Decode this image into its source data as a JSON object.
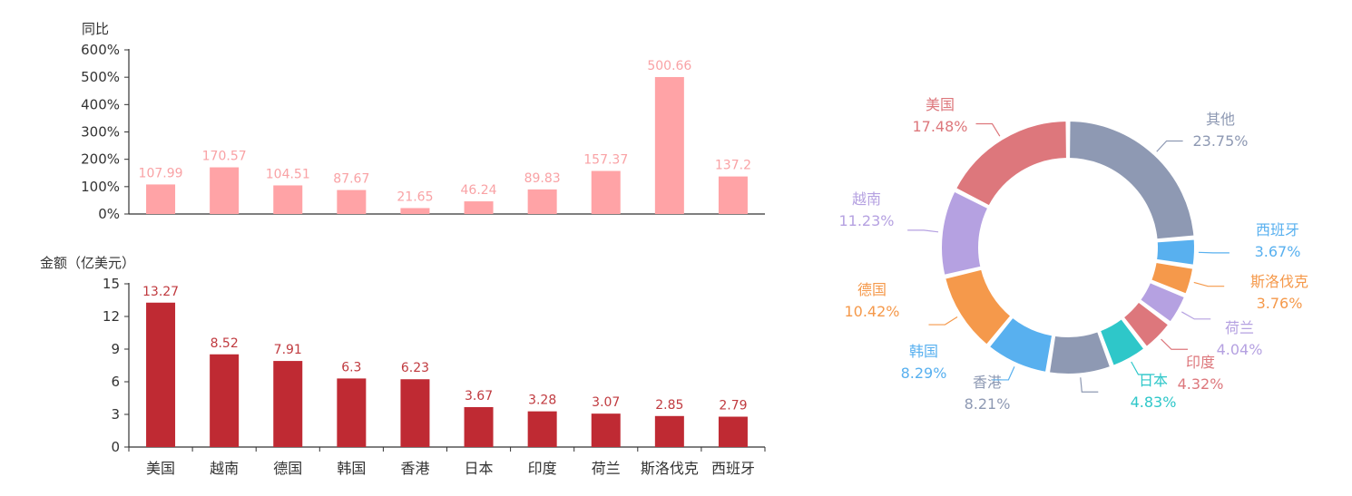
{
  "chart_data": [
    {
      "type": "bar",
      "ylabel": "同比",
      "ylim": [
        0,
        600
      ],
      "yticks": [
        "0%",
        "100%",
        "200%",
        "300%",
        "400%",
        "500%",
        "600%"
      ],
      "categories": [
        "美国",
        "越南",
        "德国",
        "韩国",
        "香港",
        "日本",
        "印度",
        "荷兰",
        "斯洛伐克",
        "西班牙"
      ],
      "values": [
        107.99,
        170.57,
        104.51,
        87.67,
        21.65,
        46.24,
        89.83,
        157.37,
        500.66,
        137.2
      ],
      "value_labels": [
        "107.99",
        "170.57",
        "104.51",
        "87.67",
        "21.65",
        "46.24",
        "89.83",
        "157.37",
        "500.66",
        "137.2"
      ],
      "color": "#ffa3a6",
      "label_color": "#f9a2a5"
    },
    {
      "type": "bar",
      "ylabel": "金额（亿美元）",
      "ylim": [
        0,
        15
      ],
      "yticks": [
        "0",
        "3",
        "6",
        "9",
        "12",
        "15"
      ],
      "categories": [
        "美国",
        "越南",
        "德国",
        "韩国",
        "香港",
        "日本",
        "印度",
        "荷兰",
        "斯洛伐克",
        "西班牙"
      ],
      "values": [
        13.27,
        8.52,
        7.91,
        6.3,
        6.23,
        3.67,
        3.28,
        3.07,
        2.85,
        2.79
      ],
      "value_labels": [
        "13.27",
        "8.52",
        "7.91",
        "6.3",
        "6.23",
        "3.67",
        "3.28",
        "3.07",
        "2.85",
        "2.79"
      ],
      "color": "#bf2a33",
      "label_color": "#c03a3f"
    },
    {
      "type": "pie",
      "variant": "donut",
      "slices": [
        {
          "name": "其他",
          "value": 23.75,
          "pct_label": "23.75%",
          "color": "#8e99b3"
        },
        {
          "name": "西班牙",
          "value": 3.67,
          "pct_label": "3.67%",
          "color": "#58b0ef"
        },
        {
          "name": "斯洛伐克",
          "value": 3.76,
          "pct_label": "3.76%",
          "color": "#f5994b"
        },
        {
          "name": "荷兰",
          "value": 4.04,
          "pct_label": "4.04%",
          "color": "#b5a1e1"
        },
        {
          "name": "印度",
          "value": 4.32,
          "pct_label": "4.32%",
          "color": "#dd777c"
        },
        {
          "name": "日本",
          "value": 4.83,
          "pct_label": "4.83%",
          "color": "#2ec7c9"
        },
        {
          "name": "香港",
          "value": 8.21,
          "pct_label": "8.21%",
          "color": "#8e99b3"
        },
        {
          "name": "韩国",
          "value": 8.29,
          "pct_label": "8.29%",
          "color": "#58b0ef"
        },
        {
          "name": "德国",
          "value": 10.42,
          "pct_label": "10.42%",
          "color": "#f5994b"
        },
        {
          "name": "越南",
          "value": 11.23,
          "pct_label": "11.23%",
          "color": "#b5a1e1"
        },
        {
          "name": "美国",
          "value": 17.48,
          "pct_label": "17.48%",
          "color": "#dd777c"
        }
      ]
    }
  ]
}
